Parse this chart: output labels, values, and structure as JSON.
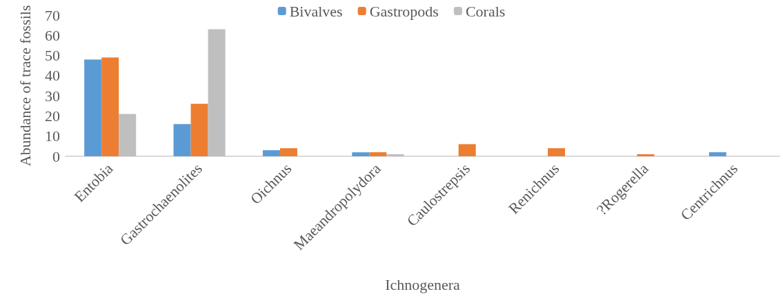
{
  "chart_data": {
    "type": "bar",
    "xlabel": "Ichnogenera",
    "ylabel": "Abundance of trace fossils",
    "categories": [
      "Entobia",
      "Gastrochaenolites",
      "Oichnus",
      "Maeandropolydora",
      "Caulostrepsis",
      "Renichnus",
      "?Rogerella",
      "Centrichnus"
    ],
    "series": [
      {
        "name": "Bivalves",
        "color": "#5b9bd5",
        "values": [
          48,
          16,
          3,
          2,
          0,
          0,
          0,
          2
        ]
      },
      {
        "name": "Gastropods",
        "color": "#ed7d31",
        "values": [
          49,
          26,
          4,
          2,
          6,
          4,
          1,
          0
        ]
      },
      {
        "name": "Corals",
        "color": "#bfbfbf",
        "values": [
          21,
          63,
          0,
          1,
          0,
          0,
          0,
          0
        ]
      }
    ],
    "ylim": [
      0,
      70
    ],
    "yticks": [
      0,
      10,
      20,
      30,
      40,
      50,
      60,
      70
    ],
    "grid": false,
    "legend": "top"
  }
}
